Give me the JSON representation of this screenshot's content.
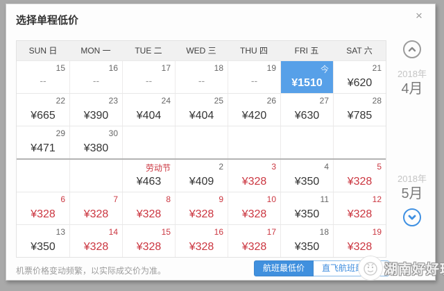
{
  "window": {
    "title": "选择单程低价",
    "close_icon": "×"
  },
  "calendar": {
    "day_headers": [
      "SUN 日",
      "MON 一",
      "TUE 二",
      "WED 三",
      "THU 四",
      "FRI 五",
      "SAT 六"
    ],
    "month_separator_row": 3,
    "today_label": "今",
    "rows": [
      [
        {
          "date": "15",
          "price": "--"
        },
        {
          "date": "16",
          "price": "--"
        },
        {
          "date": "17",
          "price": "--"
        },
        {
          "date": "18",
          "price": "--"
        },
        {
          "date": "19",
          "price": "--"
        },
        {
          "date": "今",
          "price": "¥1510",
          "today": true
        },
        {
          "date": "21",
          "price": "¥620"
        }
      ],
      [
        {
          "date": "22",
          "price": "¥665"
        },
        {
          "date": "23",
          "price": "¥390"
        },
        {
          "date": "24",
          "price": "¥404"
        },
        {
          "date": "25",
          "price": "¥404"
        },
        {
          "date": "26",
          "price": "¥420"
        },
        {
          "date": "27",
          "price": "¥630"
        },
        {
          "date": "28",
          "price": "¥785"
        }
      ],
      [
        {
          "date": "29",
          "price": "¥471"
        },
        {
          "date": "30",
          "price": "¥380"
        },
        {},
        {},
        {},
        {},
        {}
      ],
      [
        {},
        {},
        {
          "date": "劳动节",
          "price": "¥463",
          "holiday": true
        },
        {
          "date": "2",
          "price": "¥409"
        },
        {
          "date": "3",
          "price": "¥328",
          "red": true
        },
        {
          "date": "4",
          "price": "¥350"
        },
        {
          "date": "5",
          "price": "¥328",
          "red": true
        }
      ],
      [
        {
          "date": "6",
          "price": "¥328",
          "red": true
        },
        {
          "date": "7",
          "price": "¥328",
          "red": true
        },
        {
          "date": "8",
          "price": "¥328",
          "red": true
        },
        {
          "date": "9",
          "price": "¥328",
          "red": true
        },
        {
          "date": "10",
          "price": "¥328",
          "red": true
        },
        {
          "date": "11",
          "price": "¥350"
        },
        {
          "date": "12",
          "price": "¥328",
          "red": true
        }
      ],
      [
        {
          "date": "13",
          "price": "¥350"
        },
        {
          "date": "14",
          "price": "¥328",
          "red": true
        },
        {
          "date": "15",
          "price": "¥328",
          "red": true
        },
        {
          "date": "16",
          "price": "¥328",
          "red": true
        },
        {
          "date": "17",
          "price": "¥328",
          "red": true
        },
        {
          "date": "18",
          "price": "¥350"
        },
        {
          "date": "19",
          "price": "¥328",
          "red": true
        }
      ]
    ]
  },
  "side_panel": {
    "upper": {
      "year": "2018年",
      "month": "4月"
    },
    "lower": {
      "year": "2018年",
      "month": "5月"
    }
  },
  "footer": {
    "note": "机票价格变动频繁，以实际成交价为准。",
    "buttons": [
      {
        "label": "航班最低价",
        "active": true
      },
      {
        "label": "直飞航班最低价",
        "active": false
      }
    ]
  },
  "watermark": {
    "text": "湖南好好玩"
  },
  "colors": {
    "today_highlight": "#57a0e8",
    "lowest_price_red": "#cb3640",
    "button_blue": "#4090de",
    "frame_gray": "#a9a9a9"
  }
}
